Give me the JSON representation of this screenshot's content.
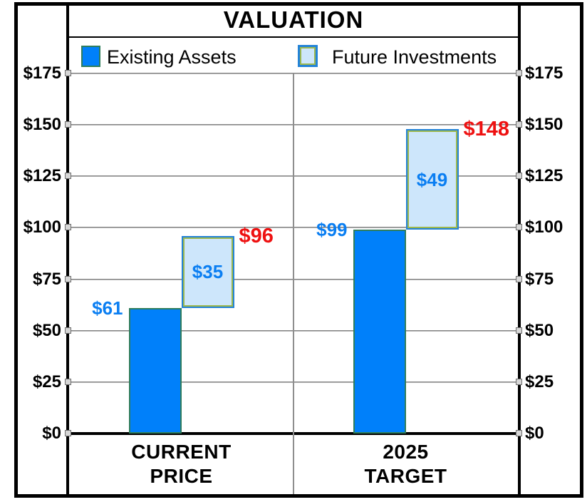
{
  "title": "VALUATION",
  "legend": {
    "existing_label": "Existing Assets",
    "future_label": "Future Investments"
  },
  "colors": {
    "existing_fill": "#0080fa",
    "existing_border": "#2f7d5c",
    "future_fill": "#cde6fb",
    "future_border_outer": "#2383d8",
    "future_border_inner": "#9db84e",
    "value_label_blue": "#0a7ef2",
    "total_label_red": "#ee1111",
    "grid_gray": "#8e8e8e"
  },
  "y_axis": {
    "min": 0,
    "max": 175,
    "step": 25,
    "tick_labels": [
      "$0",
      "$25",
      "$50",
      "$75",
      "$100",
      "$125",
      "$150",
      "$175"
    ],
    "shown_on": "both-sides"
  },
  "chart_data": {
    "type": "bar",
    "subtype": "waterfall-stacked",
    "title": "VALUATION",
    "categories": [
      "CURRENT PRICE",
      "2025 TARGET"
    ],
    "category_lines": [
      [
        "CURRENT",
        "PRICE"
      ],
      [
        "2025",
        "TARGET"
      ]
    ],
    "series": [
      {
        "name": "Existing Assets",
        "values": [
          61,
          99
        ],
        "labels": [
          "$61",
          "$99"
        ]
      },
      {
        "name": "Future Investments",
        "values": [
          35,
          49
        ],
        "labels": [
          "$35",
          "$49"
        ]
      }
    ],
    "totals": [
      96,
      148
    ],
    "total_labels": [
      "$96",
      "$148"
    ],
    "ylim": [
      0,
      175
    ],
    "y_tick_prefix": "$",
    "legend_position": "top",
    "grid": true
  }
}
